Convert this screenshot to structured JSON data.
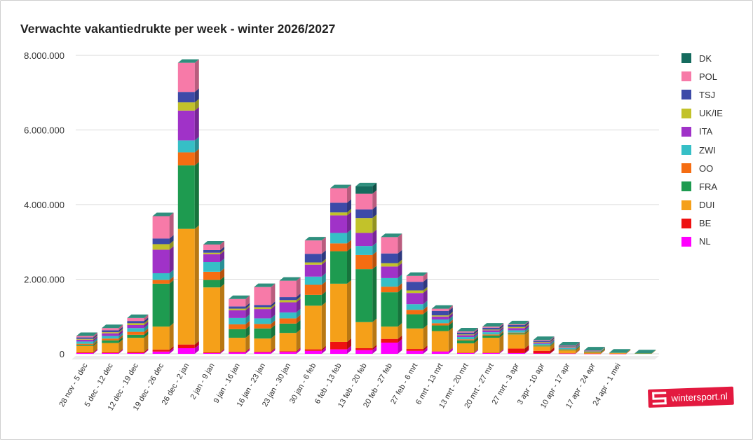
{
  "chart_data": {
    "type": "bar",
    "stacked": true,
    "title": "Verwachte vakantiedrukte per week - winter 2026/2027",
    "ylim": [
      0,
      8000000
    ],
    "yticks": [
      {
        "value": 0,
        "label": "0"
      },
      {
        "value": 2000000,
        "label": "2.000.000"
      },
      {
        "value": 4000000,
        "label": "4.000.000"
      },
      {
        "value": 6000000,
        "label": "6.000.000"
      },
      {
        "value": 8000000,
        "label": "8.000.000"
      }
    ],
    "grid": true,
    "legend": "right",
    "categories": [
      "28 nov - 5 dec",
      "5 dec - 12 dec",
      "12 dec - 19 dec",
      "19 dec - 26 dec",
      "26 dec - 2 jan",
      "2 jan - 9 jan",
      "9 jan - 16 jan",
      "16 jan - 23 jan",
      "23 jan - 30 jan",
      "30 jan - 6 feb",
      "6 feb - 13 feb",
      "13 feb - 20 feb",
      "20 feb - 27 feb",
      "27 feb - 6 mrt",
      "6 mrt - 13 mrt",
      "13 mrt - 20 mrt",
      "20 mrt - 27 mrt",
      "27 mrt - 3 apr",
      "3 apr - 10 apr",
      "10 apr - 17 apr",
      "17 apr - 24 apr",
      "24 apr - 1 mei",
      ""
    ],
    "series": [
      {
        "name": "NL",
        "color": "#ff00ff",
        "values": [
          20000,
          20000,
          20000,
          60000,
          150000,
          20000,
          40000,
          40000,
          50000,
          80000,
          120000,
          100000,
          300000,
          80000,
          60000,
          20000,
          20000,
          20000,
          10000,
          5000,
          3000,
          2000,
          0
        ]
      },
      {
        "name": "BE",
        "color": "#ee1111",
        "values": [
          20000,
          20000,
          30000,
          50000,
          100000,
          20000,
          20000,
          20000,
          20000,
          40000,
          200000,
          50000,
          100000,
          50000,
          10000,
          10000,
          10000,
          120000,
          70000,
          10000,
          3000,
          2000,
          0
        ]
      },
      {
        "name": "DUI",
        "color": "#f5a019",
        "values": [
          170000,
          250000,
          380000,
          620000,
          3100000,
          1740000,
          370000,
          350000,
          490000,
          1170000,
          1560000,
          700000,
          330000,
          550000,
          540000,
          250000,
          400000,
          380000,
          120000,
          80000,
          30000,
          20000,
          10000
        ]
      },
      {
        "name": "FRA",
        "color": "#1e9b50",
        "values": [
          30000,
          70000,
          80000,
          1150000,
          1700000,
          200000,
          230000,
          270000,
          250000,
          290000,
          870000,
          1420000,
          920000,
          380000,
          150000,
          80000,
          60000,
          30000,
          20000,
          20000,
          20000,
          10000,
          5000
        ]
      },
      {
        "name": "OO",
        "color": "#f56d12",
        "values": [
          30000,
          50000,
          80000,
          100000,
          350000,
          220000,
          130000,
          120000,
          140000,
          270000,
          210000,
          380000,
          150000,
          120000,
          60000,
          30000,
          30000,
          20000,
          10000,
          10000,
          5000,
          0,
          0
        ]
      },
      {
        "name": "ZWI",
        "color": "#36bfc6",
        "values": [
          60000,
          70000,
          100000,
          180000,
          320000,
          260000,
          170000,
          150000,
          160000,
          220000,
          280000,
          240000,
          230000,
          150000,
          100000,
          60000,
          60000,
          60000,
          40000,
          30000,
          10000,
          0,
          0
        ]
      },
      {
        "name": "ITA",
        "color": "#a032c8",
        "values": [
          50000,
          70000,
          80000,
          630000,
          800000,
          210000,
          210000,
          250000,
          270000,
          320000,
          470000,
          350000,
          310000,
          300000,
          80000,
          50000,
          50000,
          60000,
          30000,
          20000,
          5000,
          0,
          0
        ]
      },
      {
        "name": "UK/IE",
        "color": "#c2c22a",
        "values": [
          20000,
          30000,
          50000,
          150000,
          220000,
          40000,
          40000,
          50000,
          60000,
          60000,
          80000,
          400000,
          90000,
          70000,
          30000,
          20000,
          20000,
          30000,
          20000,
          20000,
          5000,
          0,
          0
        ]
      },
      {
        "name": "TSJ",
        "color": "#3d4aa8",
        "values": [
          40000,
          50000,
          60000,
          150000,
          280000,
          70000,
          60000,
          60000,
          80000,
          230000,
          260000,
          230000,
          260000,
          230000,
          120000,
          50000,
          50000,
          50000,
          30000,
          20000,
          5000,
          0,
          0
        ]
      },
      {
        "name": "POL",
        "color": "#f77aa8",
        "values": [
          40000,
          60000,
          80000,
          600000,
          780000,
          150000,
          200000,
          480000,
          440000,
          360000,
          390000,
          420000,
          440000,
          160000,
          60000,
          30000,
          30000,
          20000,
          20000,
          10000,
          5000,
          0,
          0
        ]
      },
      {
        "name": "DK",
        "color": "#156b5e",
        "values": [
          0,
          0,
          0,
          0,
          0,
          0,
          0,
          0,
          0,
          0,
          0,
          200000,
          0,
          0,
          0,
          0,
          0,
          0,
          0,
          0,
          0,
          0,
          0
        ]
      }
    ]
  },
  "brand": {
    "text": "wintersport.nl"
  }
}
